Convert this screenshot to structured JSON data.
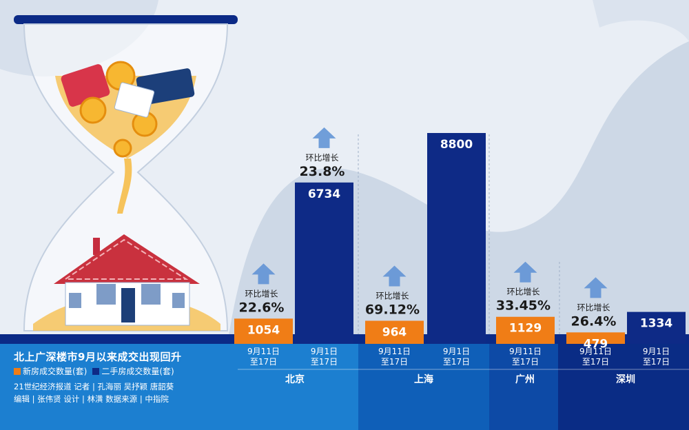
{
  "title": "北上广深楼市9月以来成交出现回升",
  "legend": {
    "new": "新房成交数量(套)",
    "second": "二手房成交数量(套)"
  },
  "credits": {
    "line1": "21世纪经济报道  记者 | 孔海丽  吴抒颖  唐韶葵",
    "line2": "编辑 | 张伟贤   设计 | 林潢   数据来源 | 中指院"
  },
  "colors": {
    "new": "#f07d16",
    "second": "#0e2a86",
    "arrow": "#5b8fd4",
    "footer_light": "#1c7fd0",
    "footer_mid": "#0f5fb8",
    "footer_dark": "#0a2c85"
  },
  "chart_data": {
    "type": "bar",
    "title": "北上广深楼市9月以来成交出现回升",
    "categories": [
      "北京",
      "上海",
      "广州",
      "深圳"
    ],
    "series": [
      {
        "name": "新房成交数量(套)",
        "period": "9月11日至17日",
        "values": [
          1054,
          964,
          1129,
          479
        ],
        "growth_label": "环比增长",
        "growth": [
          "22.6%",
          "69.12%",
          "33.45%",
          "26.4%"
        ]
      },
      {
        "name": "二手房成交数量(套)",
        "period": "9月1日至17日",
        "values": [
          6734,
          8800,
          null,
          1334
        ],
        "growth_label": "环比增长",
        "growth": [
          "23.8%",
          null,
          null,
          null
        ]
      }
    ],
    "period_labels": {
      "new_line1": "9月11日",
      "new_line2": "至17日",
      "second_line1": "9月1日",
      "second_line2": "至17日"
    }
  }
}
